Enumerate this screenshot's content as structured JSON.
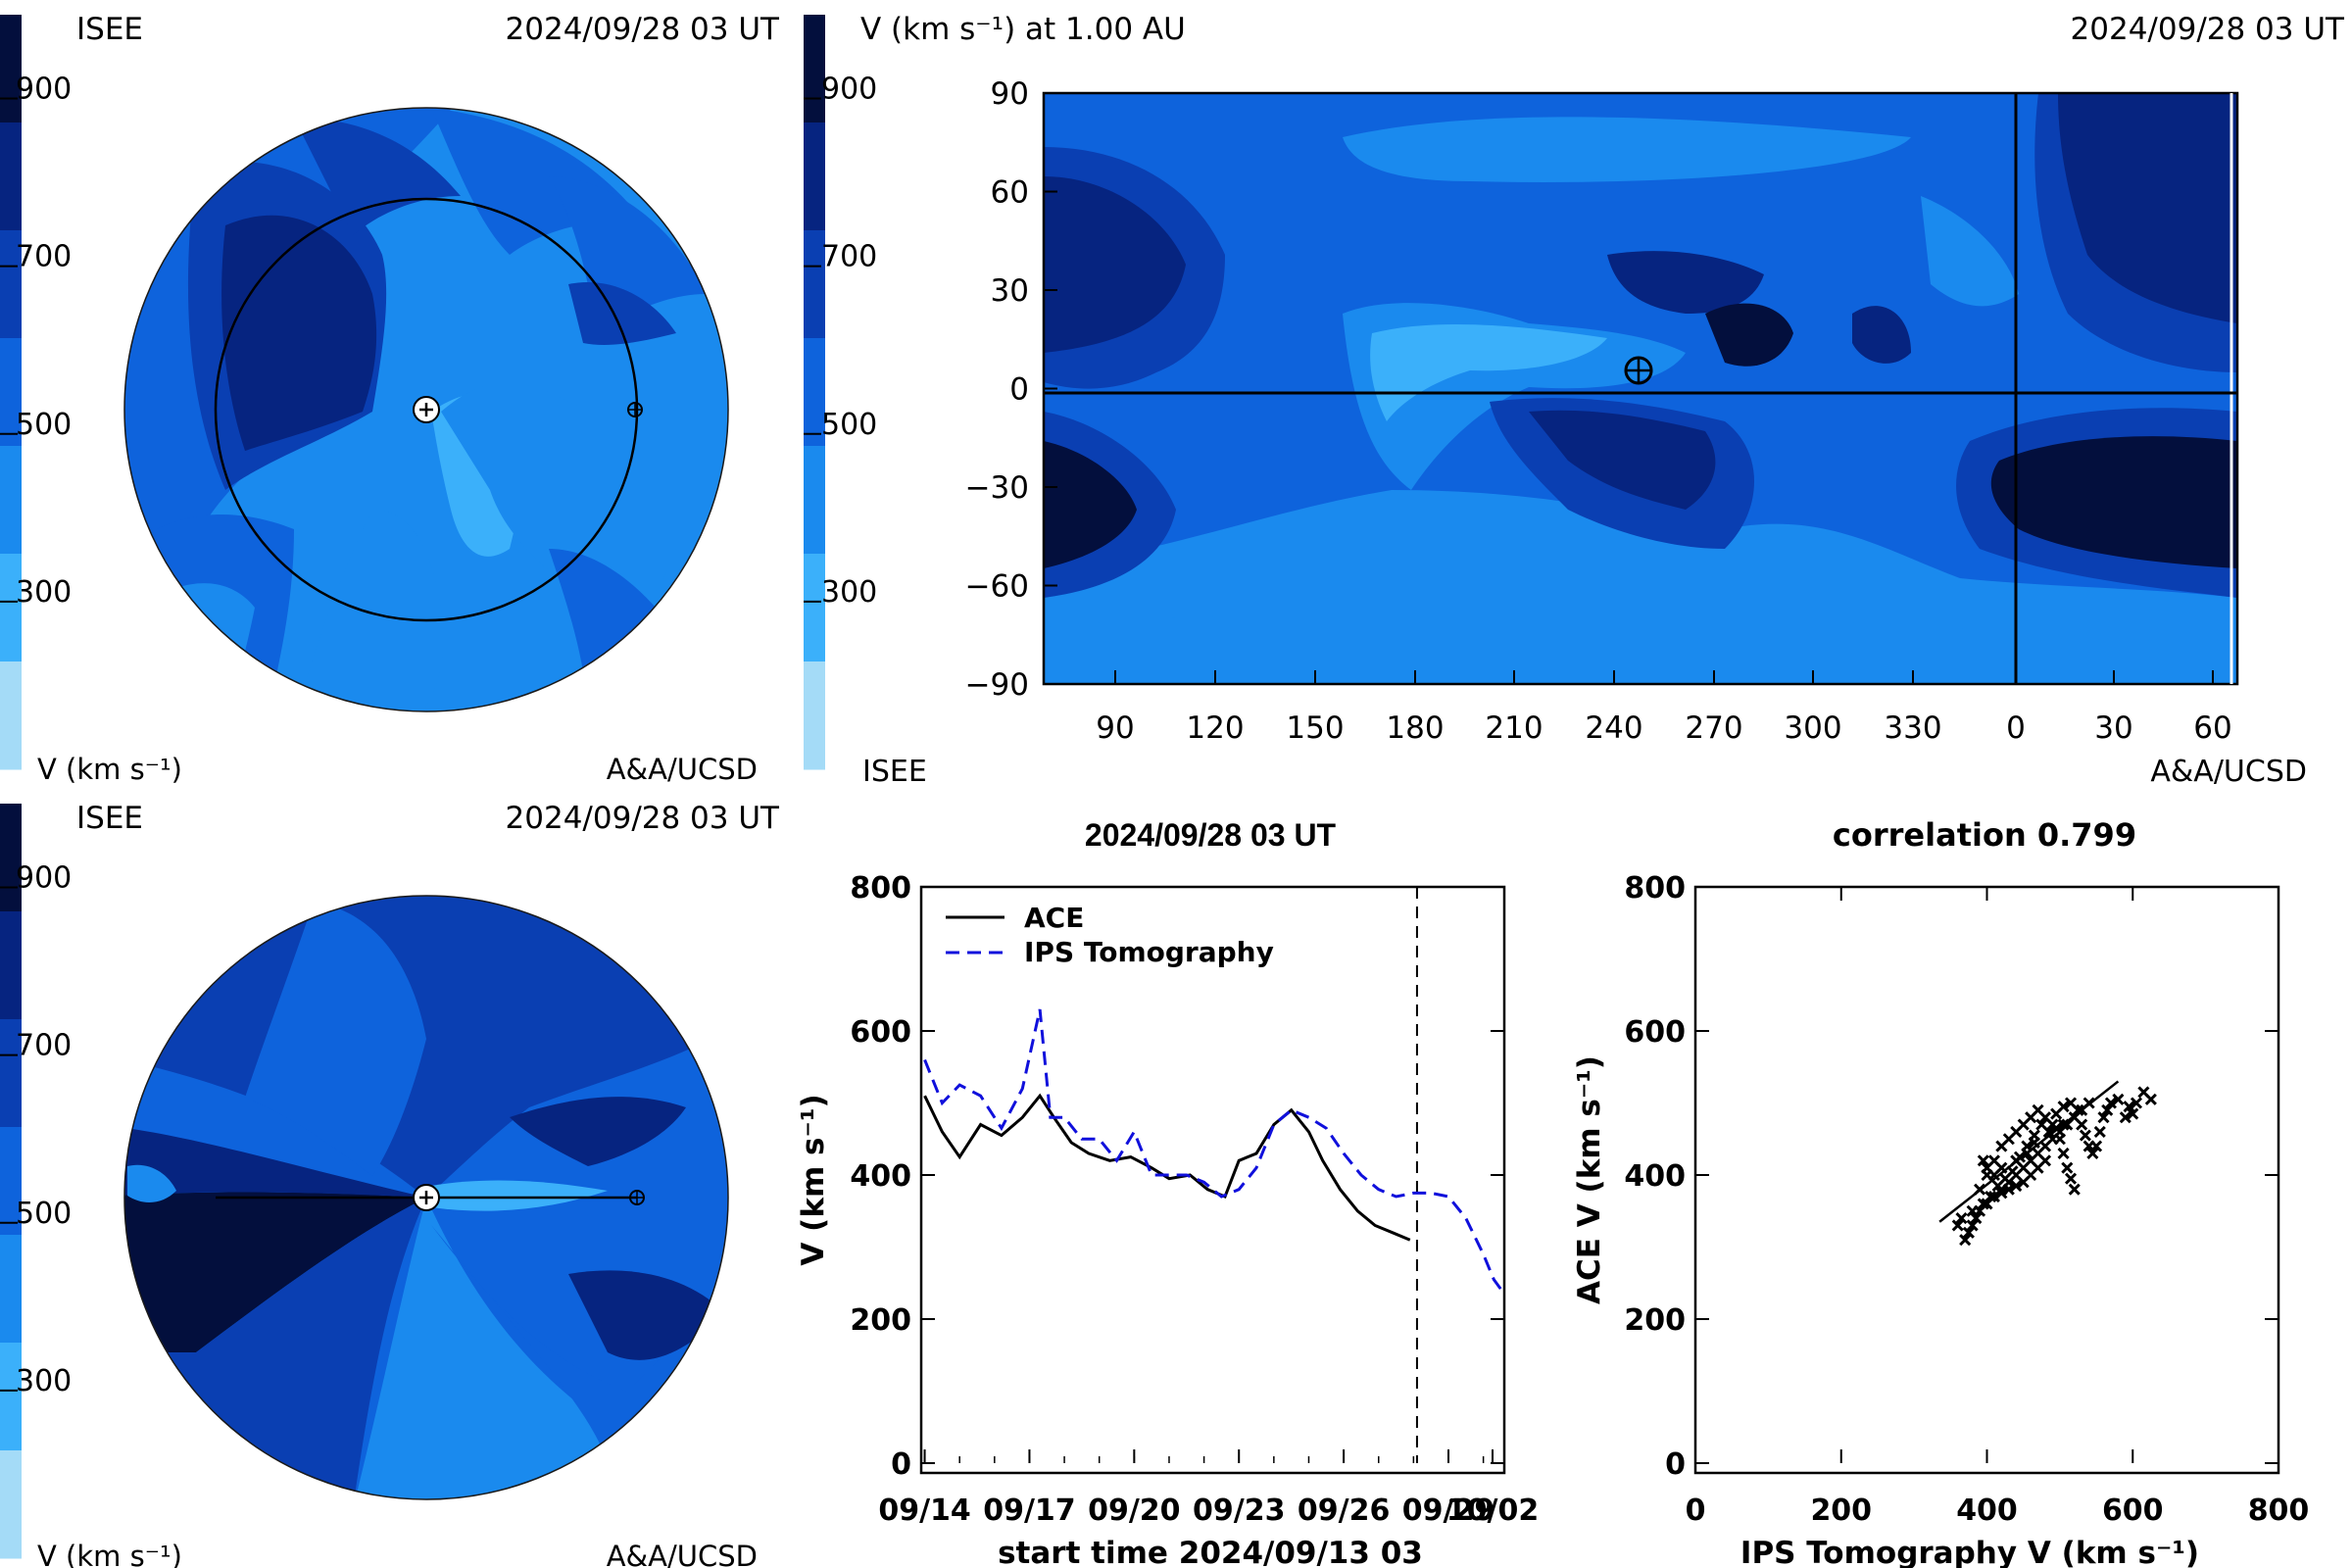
{
  "palette": [
    "#a4dbf7",
    "#3bb0fa",
    "#1a8aee",
    "#0e63dc",
    "#0a3fb2",
    "#062480",
    "#030f3d"
  ],
  "colorbar": {
    "ticks": [
      "900",
      "700",
      "500",
      "300"
    ],
    "tick_values": [
      900,
      700,
      500,
      300
    ],
    "range": [
      100,
      1000
    ]
  },
  "panel_tl": {
    "org": "ISEE",
    "timestamp": "2024/09/28 03 UT",
    "units": "V (km s⁻¹)",
    "credit": "A&A/UCSD"
  },
  "panel_bl": {
    "org": "ISEE",
    "timestamp": "2024/09/28 03 UT",
    "units": "V (km s⁻¹)",
    "credit": "A&A/UCSD"
  },
  "panel_tr": {
    "title": "V (km s⁻¹) at 1.00 AU",
    "timestamp": "2024/09/28 03 UT",
    "org": "ISEE",
    "credit": "A&A/UCSD",
    "lon_ticks": [
      "90",
      "120",
      "150",
      "180",
      "210",
      "240",
      "270",
      "300",
      "330",
      "0",
      "30",
      "60"
    ],
    "lat_ticks": [
      "90",
      "60",
      "30",
      "0",
      "−30",
      "−60",
      "−90"
    ],
    "lat_values": [
      90,
      60,
      30,
      0,
      -30,
      -60,
      -90
    ]
  },
  "icons": {
    "sun": "sun-icon",
    "earth": "earth-icon"
  },
  "chart_data": [
    {
      "type": "line",
      "title": "2024/09/28 03 UT",
      "xlabel": "start time 2024/09/13 03",
      "ylabel": "V (km s⁻¹)",
      "ylim": [
        0,
        800
      ],
      "xlim": [
        13.9,
        30.6
      ],
      "x_tick_labels": [
        "09/14",
        "09/17",
        "09/20",
        "09/23",
        "09/26",
        "09/29",
        "10/02"
      ],
      "x_tick_values": [
        14,
        17,
        20,
        23,
        26,
        29,
        32
      ],
      "y_ticks": [
        0,
        200,
        400,
        600,
        800
      ],
      "now_marker": 28.1,
      "series": [
        {
          "name": "ACE",
          "color": "#000000",
          "style": "solid",
          "x": [
            14.0,
            14.5,
            15.0,
            15.6,
            16.2,
            16.8,
            17.3,
            17.7,
            18.2,
            18.7,
            19.3,
            19.9,
            20.5,
            21.0,
            21.6,
            22.1,
            22.6,
            23.0,
            23.5,
            24.0,
            24.5,
            25.0,
            25.4,
            25.9,
            26.4,
            26.9,
            27.4,
            27.9
          ],
          "values": [
            510,
            460,
            425,
            470,
            455,
            480,
            510,
            480,
            445,
            430,
            420,
            425,
            410,
            395,
            400,
            380,
            370,
            420,
            430,
            470,
            490,
            460,
            420,
            380,
            350,
            330,
            320,
            310
          ]
        },
        {
          "name": "IPS Tomography",
          "color": "#1010dc",
          "style": "dashed",
          "x": [
            14.0,
            14.5,
            15.0,
            15.6,
            16.2,
            16.8,
            17.3,
            17.6,
            18.0,
            18.5,
            19.0,
            19.5,
            20.0,
            20.5,
            21.0,
            21.5,
            22.0,
            22.5,
            23.0,
            23.5,
            24.0,
            24.5,
            25.0,
            25.5,
            26.0,
            26.5,
            27.0,
            27.5,
            28.0,
            28.5,
            29.0,
            29.5,
            30.0,
            30.3,
            30.6
          ],
          "values": [
            560,
            500,
            525,
            510,
            465,
            520,
            630,
            480,
            480,
            450,
            450,
            420,
            460,
            400,
            400,
            400,
            390,
            370,
            380,
            410,
            470,
            490,
            480,
            465,
            430,
            400,
            380,
            370,
            375,
            375,
            370,
            340,
            290,
            255,
            235
          ]
        }
      ]
    },
    {
      "type": "scatter",
      "title": "correlation 0.799",
      "xlabel": "IPS Tomography V (km s⁻¹)",
      "ylabel": "ACE V (km s⁻¹)",
      "xlim": [
        0,
        800
      ],
      "ylim": [
        0,
        800
      ],
      "x_ticks": [
        0,
        200,
        400,
        600,
        800
      ],
      "y_ticks": [
        0,
        200,
        400,
        600,
        800
      ],
      "points": [
        [
          370,
          310
        ],
        [
          375,
          320
        ],
        [
          380,
          330
        ],
        [
          385,
          340
        ],
        [
          390,
          350
        ],
        [
          400,
          360
        ],
        [
          410,
          370
        ],
        [
          420,
          380
        ],
        [
          430,
          390
        ],
        [
          440,
          400
        ],
        [
          450,
          410
        ],
        [
          460,
          420
        ],
        [
          470,
          430
        ],
        [
          480,
          440
        ],
        [
          490,
          450
        ],
        [
          500,
          460
        ],
        [
          510,
          470
        ],
        [
          520,
          480
        ],
        [
          530,
          490
        ],
        [
          540,
          500
        ],
        [
          380,
          350
        ],
        [
          390,
          380
        ],
        [
          400,
          400
        ],
        [
          410,
          420
        ],
        [
          420,
          440
        ],
        [
          430,
          450
        ],
        [
          440,
          460
        ],
        [
          450,
          470
        ],
        [
          460,
          480
        ],
        [
          470,
          490
        ],
        [
          480,
          480
        ],
        [
          490,
          470
        ],
        [
          500,
          450
        ],
        [
          505,
          430
        ],
        [
          510,
          410
        ],
        [
          515,
          395
        ],
        [
          520,
          380
        ],
        [
          480,
          420
        ],
        [
          470,
          410
        ],
        [
          460,
          400
        ],
        [
          450,
          390
        ],
        [
          440,
          385
        ],
        [
          430,
          380
        ],
        [
          420,
          375
        ],
        [
          410,
          400
        ],
        [
          400,
          410
        ],
        [
          395,
          420
        ],
        [
          420,
          410
        ],
        [
          440,
          420
        ],
        [
          455,
          440
        ],
        [
          465,
          455
        ],
        [
          475,
          470
        ],
        [
          495,
          485
        ],
        [
          505,
          495
        ],
        [
          515,
          500
        ],
        [
          525,
          490
        ],
        [
          530,
          470
        ],
        [
          535,
          455
        ],
        [
          540,
          440
        ],
        [
          545,
          430
        ],
        [
          550,
          440
        ],
        [
          555,
          460
        ],
        [
          560,
          480
        ],
        [
          565,
          490
        ],
        [
          570,
          500
        ],
        [
          580,
          505
        ],
        [
          595,
          495
        ],
        [
          605,
          500
        ],
        [
          615,
          515
        ],
        [
          625,
          505
        ],
        [
          600,
          485
        ],
        [
          590,
          480
        ],
        [
          360,
          330
        ],
        [
          365,
          340
        ],
        [
          395,
          360
        ],
        [
          405,
          370
        ],
        [
          415,
          385
        ],
        [
          425,
          395
        ],
        [
          435,
          405
        ],
        [
          445,
          425
        ],
        [
          455,
          430
        ],
        [
          465,
          445
        ],
        [
          485,
          460
        ],
        [
          495,
          465
        ],
        [
          505,
          470
        ]
      ],
      "fit": [
        [
          335,
          335
        ],
        [
          580,
          530
        ]
      ]
    }
  ]
}
